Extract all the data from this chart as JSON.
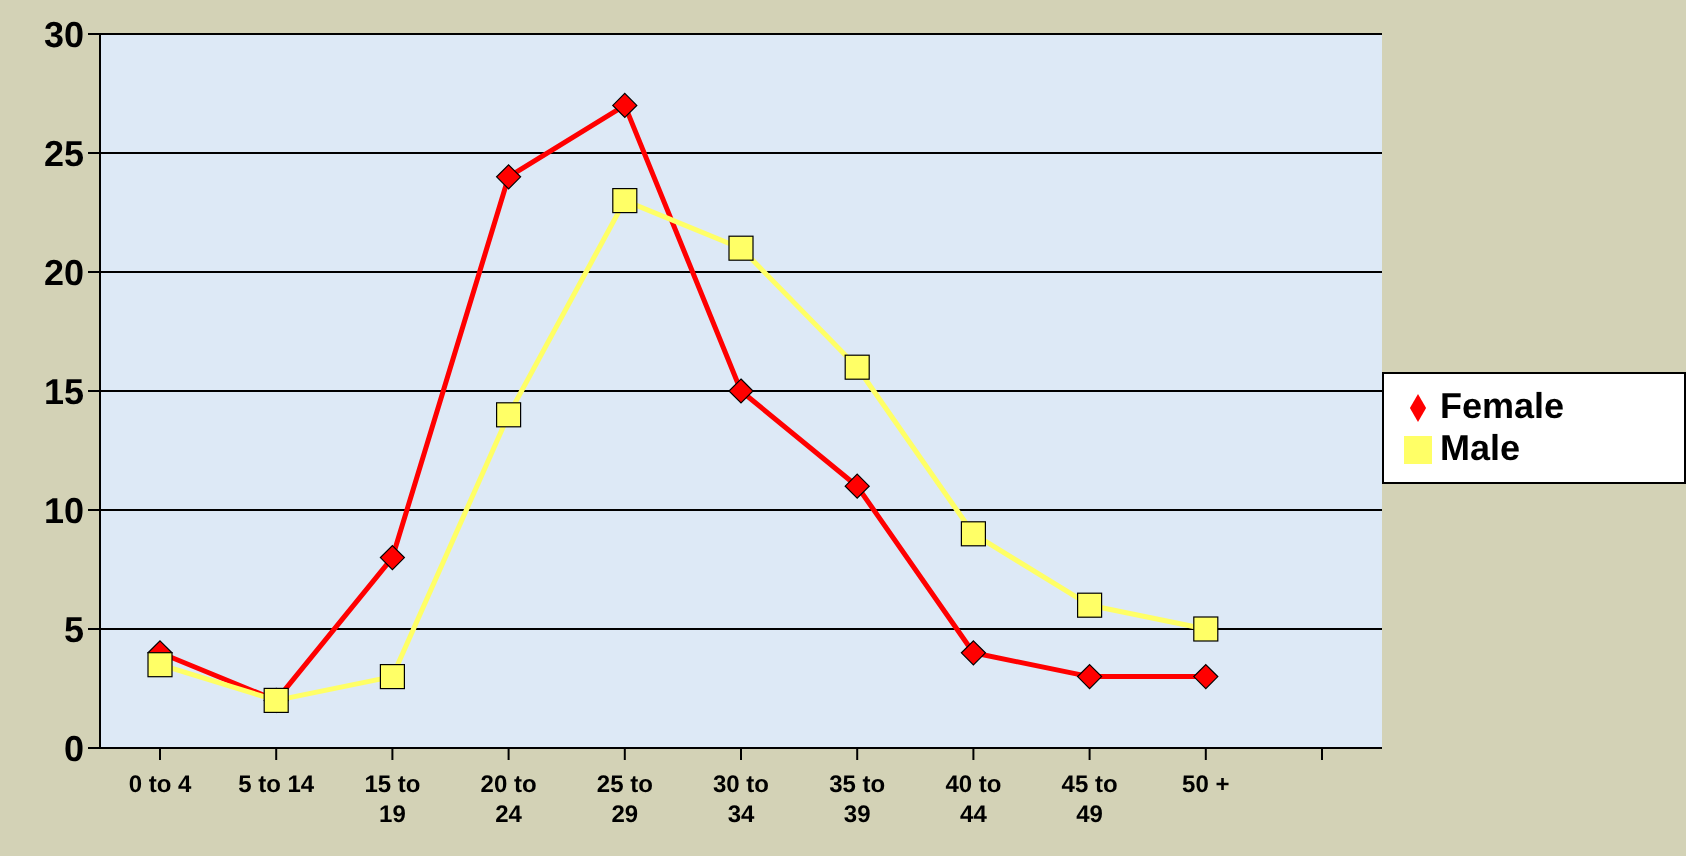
{
  "chart_data": {
    "type": "line",
    "categories": [
      "0 to 4",
      "5 to 14",
      "15 to 19",
      "20 to 24",
      "25 to 29",
      "30 to 34",
      "35 to 39",
      "40 to 44",
      "45 to 49",
      "50 +",
      null
    ],
    "series": [
      {
        "name": "Female",
        "color": "#ff0000",
        "marker": "diamond",
        "values": [
          4,
          2,
          8,
          24,
          27,
          15,
          11,
          4,
          3,
          3,
          null
        ]
      },
      {
        "name": "Male",
        "color": "#ffff66",
        "marker": "square",
        "values": [
          3.5,
          2,
          3,
          14,
          23,
          21,
          16,
          9,
          6,
          5,
          null
        ]
      }
    ],
    "ylim": [
      0,
      30
    ],
    "yticks": [
      0,
      5,
      10,
      15,
      20,
      25,
      30
    ],
    "grid": "y",
    "legend": "right"
  }
}
